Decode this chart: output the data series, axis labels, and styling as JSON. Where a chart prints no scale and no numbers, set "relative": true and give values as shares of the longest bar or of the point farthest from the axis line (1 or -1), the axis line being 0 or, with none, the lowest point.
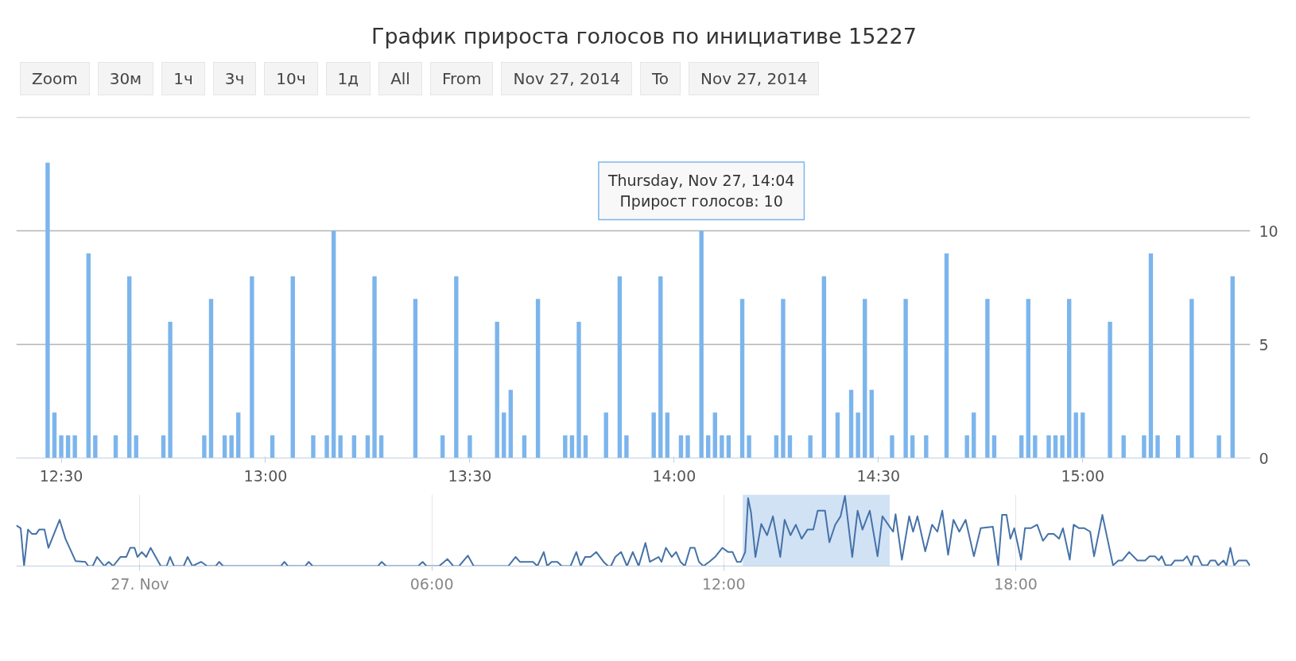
{
  "chart_data": [
    {
      "type": "bar",
      "title": "График прироста голосов по инициативе 15227",
      "annotations": [
        "Zoom",
        "30м",
        "1ч",
        "3ч",
        "10ч",
        "1д",
        "All",
        "From",
        "Nov 27, 2014",
        "To",
        "Nov 27, 2014",
        {
          "text": "Thursday, Nov 27, 14:04\nПрирост голосов: 10",
          "x": 14.0667,
          "y": 10
        }
      ],
      "x": [
        12.4667,
        12.4833,
        12.5,
        12.5167,
        12.5333,
        12.5667,
        12.5833,
        12.6333,
        12.6667,
        12.6833,
        12.75,
        12.7667,
        12.85,
        12.8667,
        12.9,
        12.9167,
        12.9333,
        12.9667,
        13.0167,
        13.0667,
        13.1167,
        13.15,
        13.1667,
        13.1833,
        13.2167,
        13.25,
        13.2667,
        13.2833,
        13.3667,
        13.4333,
        13.4667,
        13.5,
        13.5667,
        13.5833,
        13.6,
        13.6333,
        13.6667,
        13.7333,
        13.75,
        13.7667,
        13.7833,
        13.8333,
        13.8667,
        13.8833,
        13.95,
        13.9667,
        13.9833,
        14.0167,
        14.0333,
        14.0667,
        14.0833,
        14.1,
        14.1167,
        14.1333,
        14.1667,
        14.1833,
        14.25,
        14.2667,
        14.2833,
        14.3333,
        14.3667,
        14.4,
        14.4333,
        14.45,
        14.4667,
        14.4833,
        14.5333,
        14.5667,
        14.5833,
        14.6167,
        14.6667,
        14.7167,
        14.7333,
        14.7667,
        14.7833,
        14.85,
        14.8667,
        14.8833,
        14.9167,
        14.9333,
        14.95,
        14.9667,
        14.9833,
        15.0,
        15.0667,
        15.1,
        15.15,
        15.1667,
        15.1833,
        15.2333,
        15.2667,
        15.3333,
        15.3667
      ],
      "series": [
        {
          "color": "#7cb5ec",
          "values": [
            13,
            2,
            1,
            1,
            1,
            9,
            1,
            1,
            8,
            1,
            1,
            6,
            1,
            7,
            1,
            1,
            2,
            8,
            1,
            8,
            1,
            1,
            10,
            1,
            1,
            1,
            8,
            1,
            7,
            1,
            8,
            1,
            6,
            2,
            3,
            1,
            7,
            1,
            1,
            6,
            1,
            2,
            8,
            1,
            2,
            8,
            2,
            1,
            1,
            10,
            1,
            2,
            1,
            1,
            7,
            1,
            1,
            7,
            1,
            1,
            8,
            2,
            3,
            2,
            7,
            3,
            1,
            7,
            1,
            1,
            9,
            1,
            2,
            7,
            1,
            1,
            7,
            1,
            1,
            1,
            1,
            7,
            2,
            2,
            6,
            1,
            1,
            9,
            1,
            1,
            7,
            1,
            8
          ]
        }
      ],
      "xlim": [
        12.39,
        15.41
      ],
      "xticks": [
        {
          "value": 12.5,
          "label": "12:30"
        },
        {
          "value": 13,
          "label": "13:00"
        },
        {
          "value": 13.5,
          "label": "13:30"
        },
        {
          "value": 14,
          "label": "14:00"
        },
        {
          "value": 14.5,
          "label": "14:30"
        },
        {
          "value": 15,
          "label": "15:00"
        }
      ],
      "ylim": [
        0,
        15
      ],
      "yticks": [
        0,
        5,
        10
      ],
      "grid": "y"
    },
    {
      "type": "line",
      "relative": true,
      "x": [
        -2.54,
        -2.45,
        -2.38,
        -2.3,
        -2.22,
        -2.13,
        -2.07,
        -1.96,
        -1.88,
        -1.65,
        -1.53,
        -1.32,
        -1.12,
        -1.06,
        -0.97,
        -0.88,
        -0.73,
        -0.64,
        -0.55,
        -0.4,
        -0.28,
        -0.2,
        -0.11,
        -0.05,
        0.04,
        0.13,
        0.22,
        0.43,
        0.55,
        0.62,
        0.7,
        0.9,
        0.98,
        1.08,
        1.26,
        1.38,
        1.56,
        1.63,
        1.71,
        2.9,
        2.97,
        3.04,
        3.4,
        3.47,
        3.55,
        4.89,
        4.97,
        5.06,
        5.72,
        5.81,
        5.89,
        6.15,
        6.32,
        6.44,
        6.56,
        6.74,
        6.86,
        7.57,
        7.72,
        7.81,
        8.08,
        8.17,
        8.3,
        8.37,
        8.46,
        8.58,
        8.67,
        8.85,
        8.97,
        9.06,
        9.15,
        9.26,
        9.38,
        9.53,
        9.62,
        9.68,
        9.77,
        9.89,
        10.01,
        10.13,
        10.25,
        10.39,
        10.48,
        10.66,
        10.72,
        10.81,
        10.93,
        11.02,
        11.11,
        11.2,
        11.31,
        11.4,
        11.49,
        11.58,
        11.7,
        11.82,
        11.97,
        12.09,
        12.18,
        12.27,
        12.35,
        12.44,
        12.5,
        12.56,
        12.65,
        12.77,
        12.89,
        13.01,
        13.16,
        13.25,
        13.37,
        13.48,
        13.6,
        13.72,
        13.84,
        13.93,
        14.08,
        14.17,
        14.29,
        14.4,
        14.49,
        14.64,
        14.75,
        14.85,
        15.0,
        15.16,
        15.26,
        15.48,
        15.53,
        15.66,
        15.81,
        15.89,
        15.98,
        16.14,
        16.28,
        16.39,
        16.49,
        16.61,
        16.72,
        16.84,
        16.97,
        17.14,
        17.28,
        17.53,
        17.64,
        17.72,
        17.81,
        17.89,
        17.97,
        18.11,
        18.19,
        18.31,
        18.44,
        18.56,
        18.67,
        18.78,
        18.89,
        18.97,
        19.11,
        19.19,
        19.3,
        19.41,
        19.53,
        19.61,
        19.78,
        20.0,
        20.11,
        20.19,
        20.33,
        20.5,
        20.66,
        20.75,
        20.86,
        20.94,
        21.0,
        21.08,
        21.19,
        21.27,
        21.44,
        21.52,
        21.61,
        21.66,
        21.74,
        21.83,
        21.94,
        22.0,
        22.1,
        22.16,
        22.27,
        22.33,
        22.41,
        22.49,
        22.58,
        22.74,
        22.81
      ],
      "series": [
        {
          "color": "#4572a7",
          "values": [
            0.58,
            0.54,
            0,
            0.52,
            0.46,
            0.46,
            0.52,
            0.52,
            0.26,
            0.66,
            0.39,
            0.07,
            0.06,
            0,
            0,
            0.13,
            0,
            0.06,
            0,
            0.13,
            0.13,
            0.26,
            0.26,
            0.13,
            0.2,
            0.13,
            0.26,
            0,
            0,
            0.13,
            0,
            0,
            0.13,
            0,
            0.06,
            0,
            0,
            0.06,
            0,
            0,
            0.06,
            0,
            0,
            0.06,
            0,
            0,
            0.06,
            0,
            0,
            0.06,
            0,
            0,
            0.1,
            0,
            0,
            0.15,
            0,
            0,
            0.13,
            0.06,
            0.06,
            0,
            0.2,
            0,
            0.06,
            0.06,
            0,
            0,
            0.2,
            0,
            0.13,
            0.13,
            0.2,
            0.06,
            0,
            0,
            0.13,
            0.2,
            0,
            0.2,
            0,
            0.33,
            0.06,
            0.13,
            0.06,
            0.26,
            0.13,
            0.2,
            0.06,
            0,
            0.26,
            0.26,
            0.06,
            0,
            0.06,
            0.13,
            0.26,
            0.2,
            0.2,
            0.06,
            0.06,
            0.2,
            0.97,
            0.76,
            0.13,
            0.6,
            0.44,
            0.71,
            0.13,
            0.66,
            0.44,
            0.59,
            0.39,
            0.52,
            0.52,
            0.79,
            0.79,
            0.34,
            0.59,
            0.71,
            1,
            0.13,
            0.79,
            0.52,
            0.79,
            0.14,
            0.71,
            0.49,
            0.74,
            0.09,
            0.71,
            0.49,
            0.71,
            0.21,
            0.59,
            0.49,
            0.79,
            0.16,
            0.66,
            0.49,
            0.66,
            0.14,
            0.54,
            0.56,
            0.01,
            0.73,
            0.73,
            0.39,
            0.54,
            0.09,
            0.54,
            0.54,
            0.59,
            0.36,
            0.46,
            0.46,
            0.39,
            0.54,
            0.09,
            0.59,
            0.54,
            0.54,
            0.49,
            0.14,
            0.73,
            0.01,
            0.08,
            0.08,
            0.2,
            0.08,
            0.08,
            0.14,
            0.14,
            0.08,
            0.14,
            0.01,
            0.01,
            0.08,
            0.08,
            0.14,
            0.01,
            0.14,
            0.14,
            0.01,
            0.01,
            0.08,
            0.08,
            0.01,
            0.08,
            0.01,
            0.26,
            0.01,
            0.08,
            0.08,
            0.01
          ]
        }
      ],
      "xlim": [
        -2.54,
        22.82
      ],
      "xticks": [
        {
          "value": 0,
          "label": "27. Nov"
        },
        {
          "value": 6,
          "label": "06:00"
        },
        {
          "value": 12,
          "label": "12:00"
        },
        {
          "value": 18,
          "label": "18:00"
        }
      ],
      "bands": [
        {
          "axis": "x",
          "from": 12.39,
          "to": 15.41,
          "color": "#c6dbf3"
        }
      ],
      "grid": "x"
    }
  ]
}
